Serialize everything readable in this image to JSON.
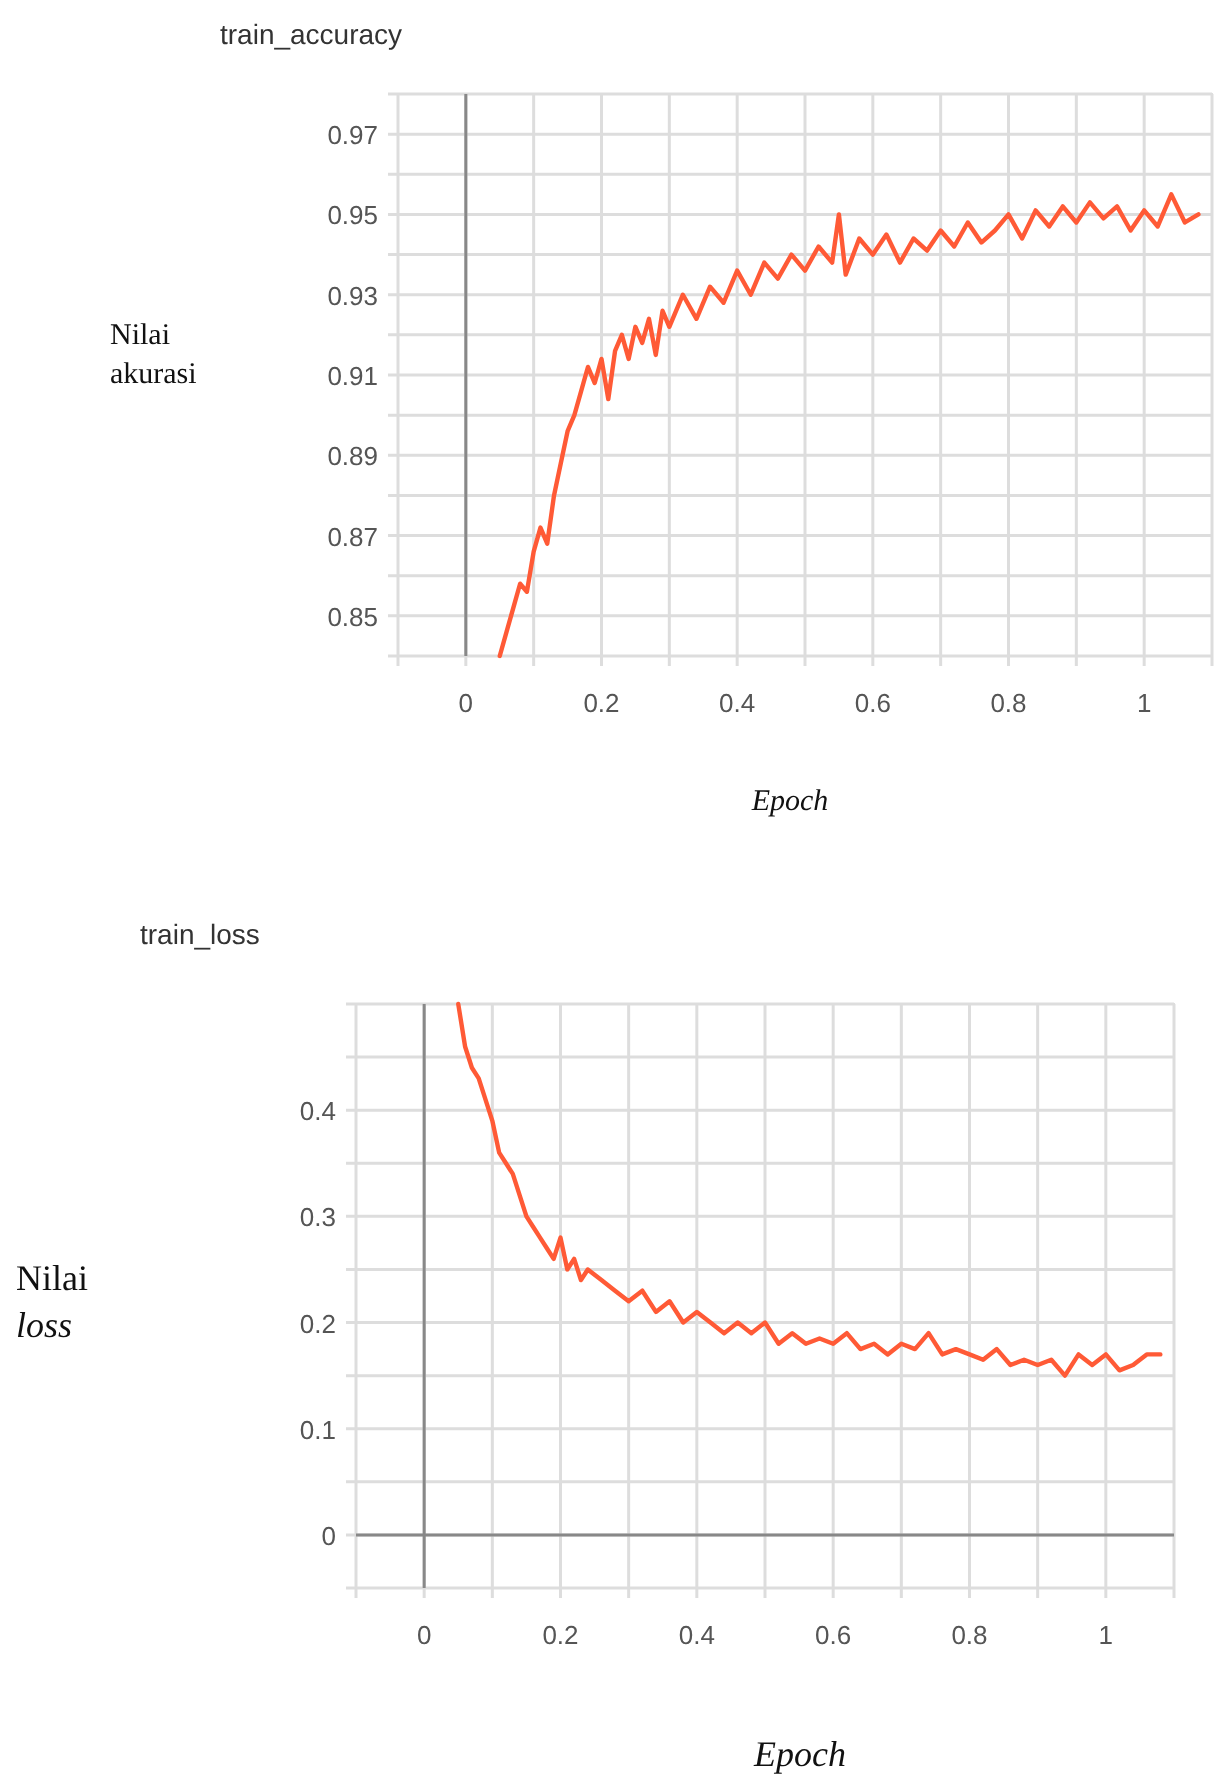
{
  "chart_data": [
    {
      "type": "line",
      "title": "train_accuracy",
      "xlabel": "Epoch",
      "ylabel": "Nilai\nakurasi",
      "grid": true,
      "marker": "none",
      "line_style": "solid",
      "xlim": [
        -0.1,
        1.1
      ],
      "ylim": [
        0.84,
        0.98
      ],
      "xticks": [
        {
          "value": -0.1,
          "label": null
        },
        0,
        {
          "value": 0.1,
          "label": null
        },
        0.2,
        {
          "value": 0.3,
          "label": null
        },
        0.4,
        {
          "value": 0.5,
          "label": null
        },
        0.6,
        {
          "value": 0.7,
          "label": null
        },
        0.8,
        {
          "value": 0.9,
          "label": null
        },
        1,
        {
          "value": 1.1,
          "label": null
        }
      ],
      "yticks": [
        {
          "value": 0.84,
          "label": null
        },
        0.85,
        {
          "value": 0.86,
          "label": null
        },
        0.87,
        {
          "value": 0.88,
          "label": null
        },
        0.89,
        {
          "value": 0.9,
          "label": null
        },
        0.91,
        {
          "value": 0.92,
          "label": null
        },
        0.93,
        {
          "value": 0.94,
          "label": null
        },
        0.95,
        {
          "value": 0.96,
          "label": null
        },
        0.97,
        {
          "value": 0.98,
          "label": null
        }
      ],
      "series": [
        {
          "color": "#ff5a36",
          "x": [
            0.05,
            0.06,
            0.07,
            0.08,
            0.09,
            0.1,
            0.11,
            0.12,
            0.13,
            0.14,
            0.15,
            0.16,
            0.17,
            0.18,
            0.19,
            0.2,
            0.21,
            0.22,
            0.23,
            0.24,
            0.25,
            0.26,
            0.27,
            0.28,
            0.29,
            0.3,
            0.32,
            0.34,
            0.36,
            0.38,
            0.4,
            0.42,
            0.44,
            0.46,
            0.48,
            0.5,
            0.52,
            0.54,
            0.55,
            0.56,
            0.58,
            0.6,
            0.62,
            0.64,
            0.66,
            0.68,
            0.7,
            0.72,
            0.74,
            0.76,
            0.78,
            0.8,
            0.82,
            0.84,
            0.86,
            0.88,
            0.9,
            0.92,
            0.94,
            0.96,
            0.98,
            1,
            1.02,
            1.04,
            1.06,
            1.08
          ],
          "values": [
            0.84,
            0.846,
            0.852,
            0.858,
            0.856,
            0.866,
            0.872,
            0.868,
            0.88,
            0.888,
            0.896,
            0.9,
            0.906,
            0.912,
            0.908,
            0.914,
            0.904,
            0.916,
            0.92,
            0.914,
            0.922,
            0.918,
            0.924,
            0.915,
            0.926,
            0.922,
            0.93,
            0.924,
            0.932,
            0.928,
            0.936,
            0.93,
            0.938,
            0.934,
            0.94,
            0.936,
            0.942,
            0.938,
            0.95,
            0.935,
            0.944,
            0.94,
            0.945,
            0.938,
            0.944,
            0.941,
            0.946,
            0.942,
            0.948,
            0.943,
            0.946,
            0.95,
            0.944,
            0.951,
            0.947,
            0.952,
            0.948,
            0.953,
            0.949,
            0.952,
            0.946,
            0.951,
            0.947,
            0.955,
            0.948,
            0.95
          ]
        }
      ]
    },
    {
      "type": "line",
      "title": "train_loss",
      "xlabel": "Epoch",
      "ylabel": "Nilai\nloss",
      "grid": true,
      "marker": "none",
      "line_style": "solid",
      "xlim": [
        -0.1,
        1.1
      ],
      "ylim": [
        -0.05,
        0.5
      ],
      "xticks": [
        {
          "value": -0.1,
          "label": null
        },
        0,
        {
          "value": 0.1,
          "label": null
        },
        0.2,
        {
          "value": 0.3,
          "label": null
        },
        0.4,
        {
          "value": 0.5,
          "label": null
        },
        0.6,
        {
          "value": 0.7,
          "label": null
        },
        0.8,
        {
          "value": 0.9,
          "label": null
        },
        1,
        {
          "value": 1.1,
          "label": null
        }
      ],
      "yticks": [
        {
          "value": -0.05,
          "label": null
        },
        0,
        {
          "value": 0.05,
          "label": null
        },
        0.1,
        {
          "value": 0.15,
          "label": null
        },
        0.2,
        {
          "value": 0.25,
          "label": null
        },
        0.3,
        {
          "value": 0.35,
          "label": null
        },
        0.4,
        {
          "value": 0.45,
          "label": null
        },
        {
          "value": 0.5,
          "label": null
        }
      ],
      "series": [
        {
          "color": "#ff5a36",
          "x": [
            0.05,
            0.06,
            0.07,
            0.08,
            0.09,
            0.1,
            0.11,
            0.12,
            0.13,
            0.14,
            0.15,
            0.16,
            0.17,
            0.18,
            0.19,
            0.2,
            0.21,
            0.22,
            0.23,
            0.24,
            0.26,
            0.28,
            0.3,
            0.32,
            0.34,
            0.36,
            0.38,
            0.4,
            0.42,
            0.44,
            0.46,
            0.48,
            0.5,
            0.52,
            0.54,
            0.56,
            0.58,
            0.6,
            0.62,
            0.64,
            0.66,
            0.68,
            0.7,
            0.72,
            0.74,
            0.76,
            0.78,
            0.8,
            0.82,
            0.84,
            0.86,
            0.88,
            0.9,
            0.92,
            0.94,
            0.96,
            0.98,
            1,
            1.02,
            1.04,
            1.06,
            1.08
          ],
          "values": [
            0.5,
            0.46,
            0.44,
            0.43,
            0.41,
            0.39,
            0.36,
            0.35,
            0.34,
            0.32,
            0.3,
            0.29,
            0.28,
            0.27,
            0.26,
            0.28,
            0.25,
            0.26,
            0.24,
            0.25,
            0.24,
            0.23,
            0.22,
            0.23,
            0.21,
            0.22,
            0.2,
            0.21,
            0.2,
            0.19,
            0.2,
            0.19,
            0.2,
            0.18,
            0.19,
            0.18,
            0.185,
            0.18,
            0.19,
            0.175,
            0.18,
            0.17,
            0.18,
            0.175,
            0.19,
            0.17,
            0.175,
            0.17,
            0.165,
            0.175,
            0.16,
            0.165,
            0.16,
            0.165,
            0.15,
            0.17,
            0.16,
            0.17,
            0.155,
            0.16,
            0.17,
            0.17
          ]
        }
      ]
    }
  ]
}
